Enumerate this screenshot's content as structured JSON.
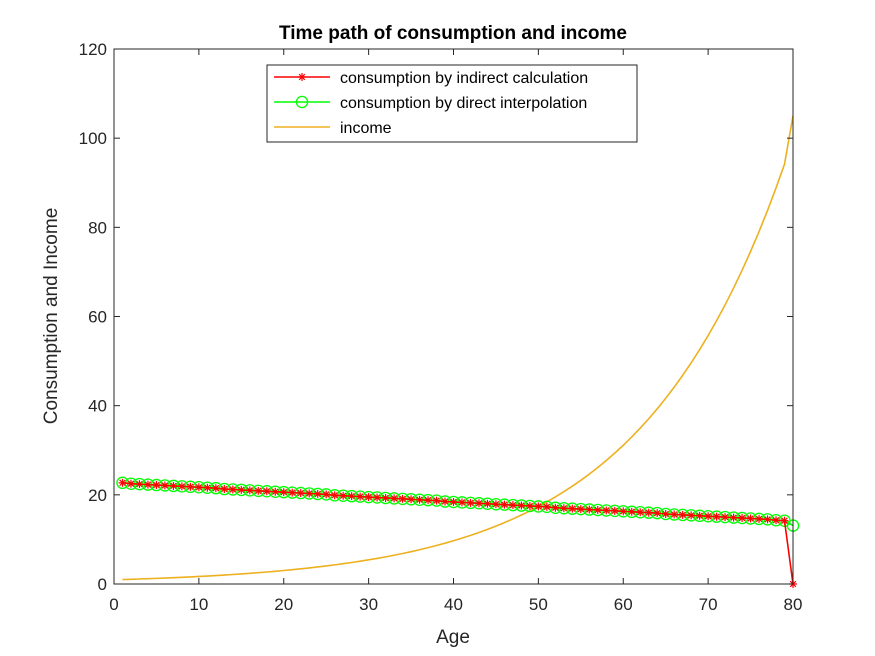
{
  "chart_data": {
    "type": "line",
    "title": "Time path of consumption and income",
    "xlabel": "Age",
    "ylabel": "Consumption and Income",
    "xlim": [
      0,
      80
    ],
    "ylim": [
      0,
      120
    ],
    "xticks": [
      "0",
      "10",
      "20",
      "30",
      "40",
      "50",
      "60",
      "70",
      "80"
    ],
    "yticks": [
      "0",
      "20",
      "40",
      "60",
      "80",
      "100",
      "120"
    ],
    "grid": false,
    "legend_position": "top-center",
    "x": [
      1,
      2,
      3,
      4,
      5,
      6,
      7,
      8,
      9,
      10,
      11,
      12,
      13,
      14,
      15,
      16,
      17,
      18,
      19,
      20,
      21,
      22,
      23,
      24,
      25,
      26,
      27,
      28,
      29,
      30,
      31,
      32,
      33,
      34,
      35,
      36,
      37,
      38,
      39,
      40,
      41,
      42,
      43,
      44,
      45,
      46,
      47,
      48,
      49,
      50,
      51,
      52,
      53,
      54,
      55,
      56,
      57,
      58,
      59,
      60,
      61,
      62,
      63,
      64,
      65,
      66,
      67,
      68,
      69,
      70,
      71,
      72,
      73,
      74,
      75,
      76,
      77,
      78,
      79,
      80
    ],
    "series": [
      {
        "name": "consumption by indirect calculation",
        "color": "#ff0000",
        "marker": "asterisk",
        "values": [
          22.7,
          22.5,
          22.4,
          22.3,
          22.2,
          22.1,
          22.0,
          21.9,
          21.8,
          21.7,
          21.6,
          21.5,
          21.3,
          21.2,
          21.1,
          21.0,
          20.9,
          20.8,
          20.7,
          20.6,
          20.5,
          20.4,
          20.3,
          20.2,
          20.1,
          19.9,
          19.8,
          19.7,
          19.6,
          19.5,
          19.4,
          19.3,
          19.2,
          19.1,
          19.0,
          18.9,
          18.8,
          18.7,
          18.5,
          18.4,
          18.3,
          18.2,
          18.1,
          18.0,
          17.9,
          17.8,
          17.7,
          17.6,
          17.5,
          17.4,
          17.3,
          17.1,
          17.0,
          16.9,
          16.8,
          16.7,
          16.6,
          16.5,
          16.4,
          16.3,
          16.2,
          16.1,
          16.0,
          15.9,
          15.7,
          15.6,
          15.5,
          15.4,
          15.3,
          15.2,
          15.1,
          15.0,
          14.9,
          14.8,
          14.7,
          14.6,
          14.5,
          14.3,
          14.2,
          0
        ]
      },
      {
        "name": "consumption by direct interpolation",
        "color": "#00ff00",
        "marker": "circle",
        "values": [
          22.7,
          22.5,
          22.4,
          22.3,
          22.2,
          22.1,
          22.0,
          21.9,
          21.8,
          21.7,
          21.6,
          21.5,
          21.3,
          21.2,
          21.1,
          21.0,
          20.9,
          20.8,
          20.7,
          20.6,
          20.5,
          20.4,
          20.3,
          20.2,
          20.1,
          19.9,
          19.8,
          19.7,
          19.6,
          19.5,
          19.4,
          19.3,
          19.2,
          19.1,
          19.0,
          18.9,
          18.8,
          18.7,
          18.5,
          18.4,
          18.3,
          18.2,
          18.1,
          18.0,
          17.9,
          17.8,
          17.7,
          17.6,
          17.5,
          17.4,
          17.3,
          17.1,
          17.0,
          16.9,
          16.8,
          16.7,
          16.6,
          16.5,
          16.4,
          16.3,
          16.2,
          16.1,
          16.0,
          15.9,
          15.7,
          15.6,
          15.5,
          15.4,
          15.3,
          15.2,
          15.1,
          15.0,
          14.9,
          14.8,
          14.7,
          14.6,
          14.5,
          14.3,
          14.2,
          13.1
        ]
      },
      {
        "name": "income",
        "color": "#edb120",
        "marker": "none",
        "values": [
          1.0,
          1.06,
          1.12,
          1.19,
          1.26,
          1.34,
          1.42,
          1.5,
          1.59,
          1.69,
          1.79,
          1.9,
          2.01,
          2.13,
          2.26,
          2.4,
          2.54,
          2.69,
          2.85,
          3.03,
          3.21,
          3.4,
          3.6,
          3.82,
          4.05,
          4.29,
          4.55,
          4.82,
          5.11,
          5.42,
          5.74,
          6.09,
          6.45,
          6.84,
          7.25,
          7.69,
          8.15,
          8.64,
          9.15,
          9.7,
          10.29,
          10.9,
          11.56,
          12.25,
          12.99,
          13.76,
          14.59,
          15.47,
          16.39,
          17.38,
          18.42,
          19.53,
          20.7,
          21.94,
          23.26,
          24.65,
          26.13,
          27.7,
          29.36,
          31.12,
          32.99,
          34.97,
          37.07,
          39.29,
          41.65,
          44.15,
          46.8,
          49.6,
          52.58,
          55.73,
          59.08,
          62.62,
          66.38,
          70.36,
          74.58,
          79.06,
          83.8,
          88.83,
          94.16,
          105.0
        ]
      }
    ]
  }
}
